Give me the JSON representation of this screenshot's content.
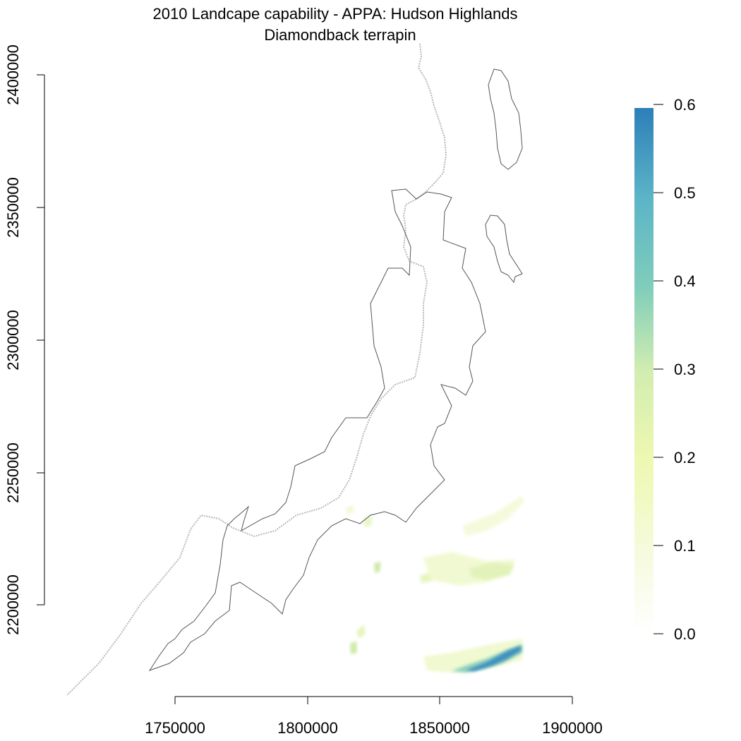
{
  "title": {
    "line1": "2010 Landcape capability - APPA: Hudson Highlands",
    "line2": "Diamondback terrapin"
  },
  "axes": {
    "x": {
      "ticks": [
        "1750000",
        "1800000",
        "1850000",
        "1900000"
      ],
      "range": [
        1750000,
        1900000
      ]
    },
    "y": {
      "ticks": [
        "2200000",
        "2250000",
        "2300000",
        "2350000",
        "2400000"
      ],
      "range": [
        2200000,
        2400000
      ]
    }
  },
  "legend": {
    "placement": "right",
    "ticks": [
      "0.0",
      "0.1",
      "0.2",
      "0.3",
      "0.4",
      "0.5",
      "0.6"
    ],
    "range": [
      0,
      0.6
    ],
    "colors": [
      "#ffffff",
      "#f6fbe1",
      "#eef8b1",
      "#d1edb0",
      "#a8dcb5",
      "#7fcdbb",
      "#5bb4c7",
      "#3f9fc4",
      "#2c7fb8"
    ]
  },
  "colors": {
    "boundary": "#555555",
    "trail": "#b8b8b8"
  }
}
